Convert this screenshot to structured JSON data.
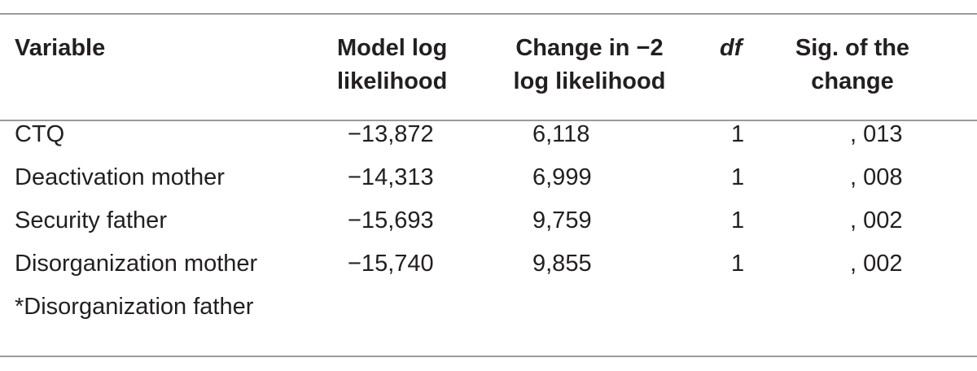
{
  "table": {
    "headers": {
      "variable": [
        "Variable"
      ],
      "model_log_likelihood": [
        "Model log",
        "likelihood"
      ],
      "change": [
        "Change in −2",
        "log likelihood"
      ],
      "df": [
        "df"
      ],
      "sig": [
        "Sig. of the",
        "change"
      ]
    },
    "rows": [
      {
        "variable": "CTQ",
        "model_log_likelihood": "−13,872",
        "change": "6,118",
        "df": "1",
        "sig": ", 013"
      },
      {
        "variable": "Deactivation mother",
        "model_log_likelihood": "−14,313",
        "change": "6,999",
        "df": "1",
        "sig": ", 008"
      },
      {
        "variable": "Security father",
        "model_log_likelihood": "−15,693",
        "change": "9,759",
        "df": "1",
        "sig": ", 002"
      },
      {
        "variable": "Disorganization mother",
        "model_log_likelihood": "−15,740",
        "change": "9,855",
        "df": "1",
        "sig": ", 002"
      },
      {
        "variable": "*Disorganization father",
        "model_log_likelihood": "",
        "change": "",
        "df": "",
        "sig": ""
      }
    ]
  }
}
